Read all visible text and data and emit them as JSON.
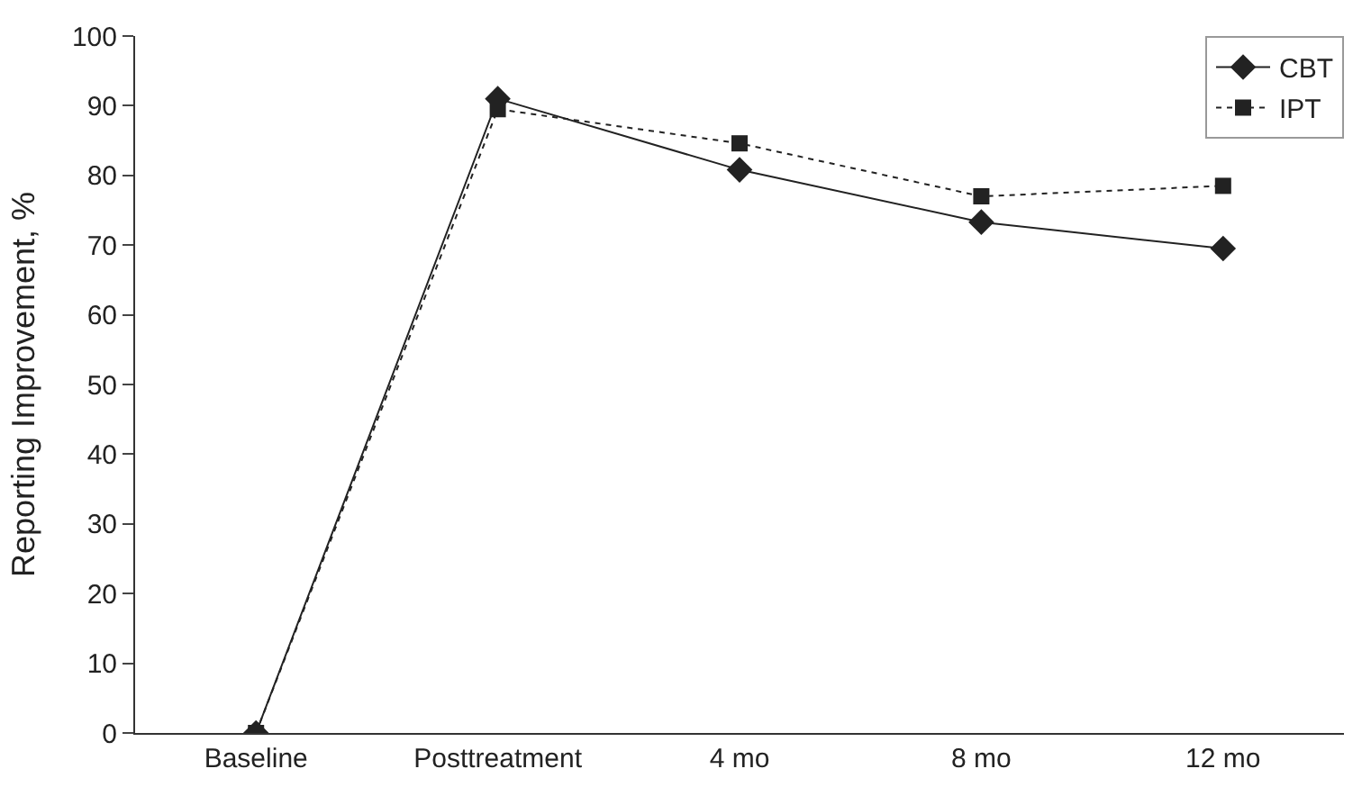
{
  "chart_data": {
    "type": "line",
    "ylabel": "Reporting Improvement, %",
    "categories": [
      "Baseline",
      "Posttreatment",
      "4 mo",
      "8 mo",
      "12 mo"
    ],
    "series": [
      {
        "name": "CBT",
        "color": "#222222",
        "values": [
          0,
          91,
          80.8,
          73.3,
          69.5
        ],
        "marker": "diamond",
        "line_style": "solid"
      },
      {
        "name": "IPT",
        "color": "#222222",
        "values": [
          0,
          89.5,
          84.6,
          77,
          78.5
        ],
        "marker": "square",
        "line_style": "dotted"
      }
    ],
    "ylim": [
      0,
      100
    ],
    "yticks": [
      0,
      10,
      20,
      30,
      40,
      50,
      60,
      70,
      80,
      90,
      100
    ],
    "legend": "top right"
  }
}
